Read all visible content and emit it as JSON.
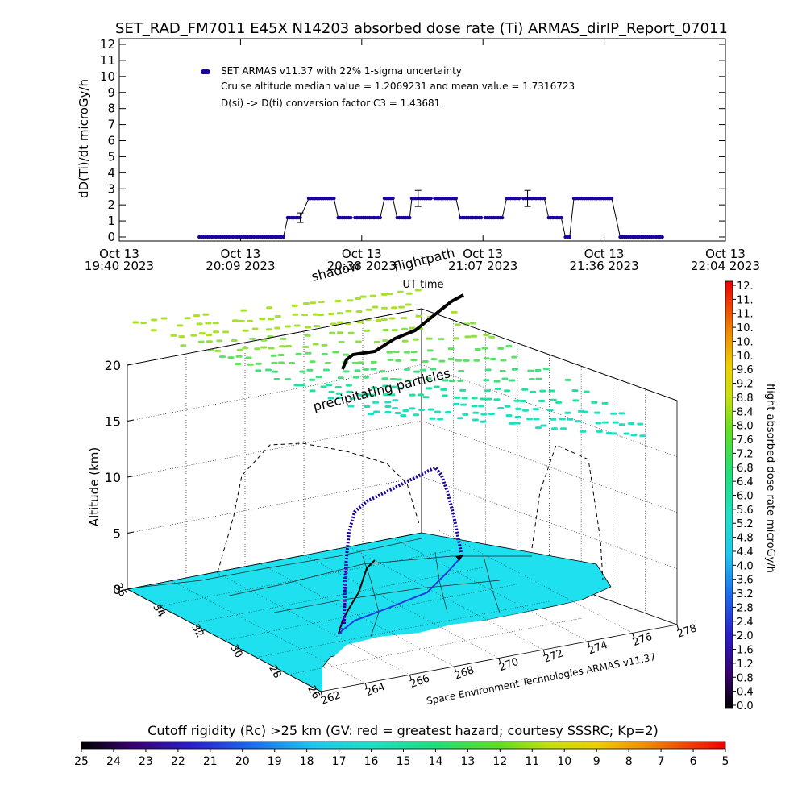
{
  "title": "SET_RAD_FM7011   E45X N14203 absorbed dose rate (Ti) ARMAS_dirIP_Report_07011",
  "chart_data": [
    {
      "id": "dose-rate-timeseries",
      "type": "scatter",
      "ylabel": "dD(Ti)/dt microGy/h",
      "xlabel": "UT time",
      "ylim": [
        0,
        12
      ],
      "yticks": [
        0,
        1,
        2,
        3,
        4,
        5,
        6,
        7,
        8,
        9,
        10,
        11,
        12
      ],
      "x_ticks": [
        {
          "line1": "Oct 13",
          "line2": "19:40 2023"
        },
        {
          "line1": "Oct 13",
          "line2": "20:09 2023"
        },
        {
          "line1": "Oct 13",
          "line2": "20:38 2023"
        },
        {
          "line1": "Oct 13",
          "line2": "21:07 2023"
        },
        {
          "line1": "Oct 13",
          "line2": "21:36 2023"
        },
        {
          "line1": "Oct 13",
          "line2": "22:04 2023"
        }
      ],
      "legend": {
        "series": "SET ARMAS v11.37 with 22% 1-sigma uncertainty",
        "line2": "Cruise altitude median value = 1.2069231 and mean value = 1.7316723",
        "line3": "D(si) -> D(ti) conversion factor C3 = 1.43681"
      },
      "series": [
        {
          "name": "SET ARMAS v11.37 with 22% 1-sigma uncertainty",
          "x_unit": "minutes after 19:40 UT",
          "segments": [
            {
              "x0": 19,
              "x1": 39,
              "y": 0
            },
            {
              "x0": 40,
              "x1": 43,
              "y": 1.2
            },
            {
              "x0": 45,
              "x1": 51,
              "y": 2.4
            },
            {
              "x0": 52,
              "x1": 55,
              "y": 1.2
            },
            {
              "x0": 56,
              "x1": 62,
              "y": 1.2
            },
            {
              "x0": 63,
              "x1": 65,
              "y": 2.4
            },
            {
              "x0": 66,
              "x1": 69,
              "y": 1.2
            },
            {
              "x0": 69.5,
              "x1": 74,
              "y": 2.4
            },
            {
              "x0": 75,
              "x1": 80,
              "y": 2.4
            },
            {
              "x0": 81,
              "x1": 86,
              "y": 1.2
            },
            {
              "x0": 87,
              "x1": 91,
              "y": 1.2
            },
            {
              "x0": 92,
              "x1": 95,
              "y": 2.4
            },
            {
              "x0": 96,
              "x1": 101,
              "y": 2.4
            },
            {
              "x0": 102,
              "x1": 105,
              "y": 1.2
            },
            {
              "x0": 106,
              "x1": 107,
              "y": 0
            },
            {
              "x0": 108,
              "x1": 117,
              "y": 2.4
            },
            {
              "x0": 119,
              "x1": 129,
              "y": 0
            }
          ],
          "error_bars": [
            {
              "x": 43,
              "y": 1.2,
              "err": 0.3
            },
            {
              "x": 71,
              "y": 2.4,
              "err": 0.5
            },
            {
              "x": 97,
              "y": 2.4,
              "err": 0.5
            }
          ],
          "color": "#1a00a0"
        }
      ]
    },
    {
      "id": "altitude-3d-flight",
      "type": "scatter",
      "zlabel": "Altitude (km)",
      "zticks": [
        0,
        5,
        10,
        15,
        20
      ],
      "lat_ticks": [
        "36",
        "34",
        "32",
        "30",
        "28",
        "26"
      ],
      "lon_ticks": [
        "262",
        "264",
        "266",
        "268",
        "270",
        "272",
        "274",
        "276",
        "278"
      ],
      "annotations": {
        "shadow": "shadow",
        "flightpath": "flightpath",
        "precipitating": "precipitating particles",
        "credit": "Space Environment Technologies ARMAS v11.37"
      }
    },
    {
      "id": "dose-rate-colorbar",
      "type": "heatmap",
      "label": "flight absorbed dose rate microGy/h",
      "ticks": [
        "12.",
        "11.",
        "11.",
        "10.",
        "10.",
        "10.",
        "9.6",
        "9.2",
        "8.8",
        "8.4",
        "8.0",
        "7.6",
        "7.2",
        "6.8",
        "6.4",
        "6.0",
        "5.6",
        "5.2",
        "4.8",
        "4.4",
        "4.0",
        "3.6",
        "3.2",
        "2.8",
        "2.4",
        "2.0",
        "1.6",
        "1.2",
        "0.8",
        "0.4",
        "0.0"
      ],
      "range": [
        0,
        12
      ]
    },
    {
      "id": "cutoff-rigidity-colorbar",
      "type": "heatmap",
      "label": "Cutoff rigidity (Rc) >25 km (GV: red = greatest hazard; courtesy SSSRC; Kp=2)",
      "ticks": [
        "25",
        "24",
        "23",
        "22",
        "21",
        "20",
        "19",
        "18",
        "17",
        "16",
        "15",
        "14",
        "13",
        "12",
        "11",
        "10",
        "9",
        "8",
        "7",
        "6",
        "5"
      ],
      "range": [
        25,
        5
      ]
    }
  ],
  "colors": {
    "series": "#1a00a0",
    "map_fill": "#1ee0ee",
    "grid": "#000000",
    "flight_ground": "#1d3be0"
  }
}
